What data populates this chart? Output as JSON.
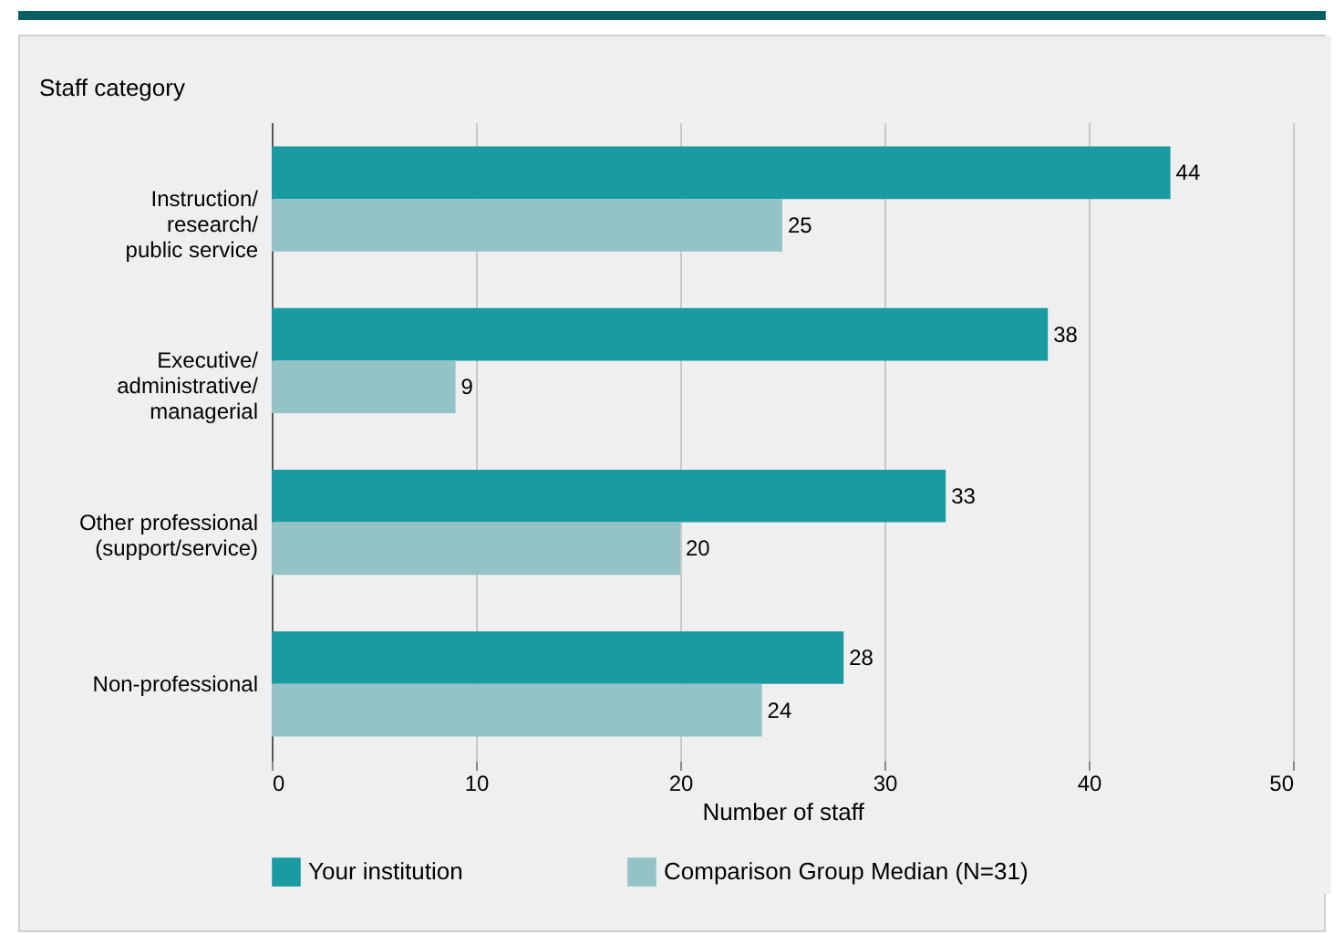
{
  "chart_data": {
    "type": "bar",
    "orientation": "horizontal",
    "ylabel": "Staff category",
    "xlabel": "Number of staff",
    "categories": [
      "Instruction/\nresearch/\npublic service",
      "Executive/\nadministrative/\nmanagerial",
      "Other professional\n(support/service)",
      "Non-professional"
    ],
    "series": [
      {
        "name": "Your institution",
        "color": "#1a9ba1",
        "values": [
          44,
          38,
          33,
          28
        ]
      },
      {
        "name": "Comparison Group Median (N=31)",
        "color": "#93c2c7",
        "values": [
          25,
          9,
          20,
          24
        ]
      }
    ],
    "xlim": [
      0,
      50
    ],
    "xticks": [
      0,
      10,
      20,
      30,
      40,
      50
    ],
    "grid": "x",
    "legend": "bottom",
    "data_labels": true
  }
}
